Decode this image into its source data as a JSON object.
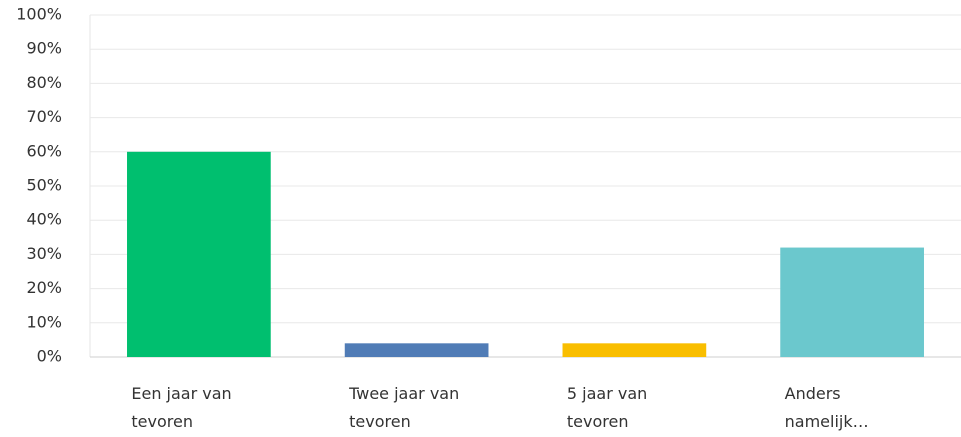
{
  "chart_data": {
    "type": "bar",
    "categories": [
      "Een jaar van tevoren",
      "Twee jaar van tevoren",
      "5 jaar van tevoren",
      "Anders namelijk…"
    ],
    "values": [
      60,
      4,
      4,
      32
    ],
    "colors": [
      "#00bf6f",
      "#507cb6",
      "#f9be00",
      "#6bc8cd"
    ],
    "ylim": [
      0,
      100
    ],
    "yticks": [
      {
        "value": 0,
        "label": "0%"
      },
      {
        "value": 10,
        "label": "10%"
      },
      {
        "value": 20,
        "label": "20%"
      },
      {
        "value": 30,
        "label": "30%"
      },
      {
        "value": 40,
        "label": "40%"
      },
      {
        "value": 50,
        "label": "50%"
      },
      {
        "value": 60,
        "label": "60%"
      },
      {
        "value": 70,
        "label": "70%"
      },
      {
        "value": 80,
        "label": "80%"
      },
      {
        "value": 90,
        "label": "90%"
      },
      {
        "value": 100,
        "label": "100%"
      }
    ],
    "grid": true
  }
}
